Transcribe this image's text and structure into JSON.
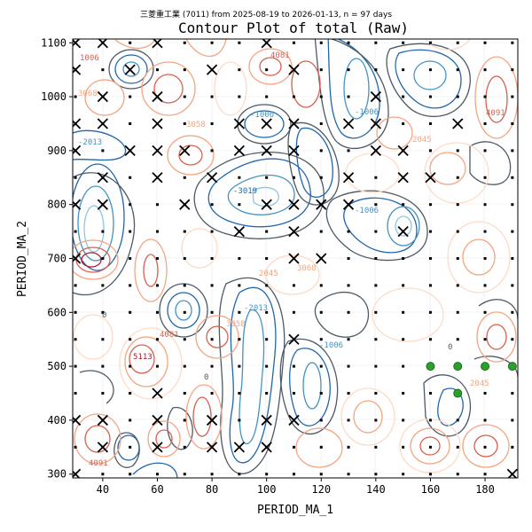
{
  "chart_data": {
    "type": "contour",
    "suptitle": "三菱重工業 (7011) from 2025-08-19 to 2026-01-13, n = 97 days",
    "title": "Contour Plot of total (Raw)",
    "xlabel": "PERIOD_MA_1",
    "ylabel": "PERIOD_MA_2",
    "xlim": [
      29,
      192
    ],
    "ylim": [
      293,
      1107
    ],
    "xticks": [
      40,
      60,
      80,
      100,
      120,
      140,
      160,
      180
    ],
    "yticks": [
      300,
      400,
      500,
      600,
      700,
      800,
      900,
      1000,
      1100
    ],
    "contour_labels": [
      "-3019",
      "-2013",
      "-1006",
      "0",
      "1006",
      "2045",
      "3058",
      "3068",
      "4081",
      "4091",
      "5113"
    ],
    "colors": {
      "negative": "#2166ac",
      "zero": "#4d5a66",
      "positive": "#d6604d",
      "best": "#2ca02c",
      "grid_point": "#000000"
    },
    "grid_points": {
      "x": [
        30,
        40,
        50,
        60,
        70,
        80,
        90,
        100,
        110,
        120,
        130,
        140,
        150,
        160,
        170,
        180,
        190
      ],
      "y": [
        300,
        350,
        400,
        450,
        500,
        550,
        600,
        650,
        700,
        750,
        800,
        850,
        900,
        950,
        1000,
        1050,
        1100
      ]
    },
    "excluded_points": [
      [
        30,
        1100
      ],
      [
        40,
        1100
      ],
      [
        60,
        1100
      ],
      [
        100,
        1100
      ],
      [
        30,
        1050
      ],
      [
        50,
        1050
      ],
      [
        80,
        1050
      ],
      [
        110,
        1050
      ],
      [
        40,
        1000
      ],
      [
        60,
        1000
      ],
      [
        140,
        1000
      ],
      [
        30,
        950
      ],
      [
        40,
        950
      ],
      [
        60,
        950
      ],
      [
        90,
        950
      ],
      [
        100,
        950
      ],
      [
        110,
        950
      ],
      [
        130,
        950
      ],
      [
        140,
        950
      ],
      [
        170,
        950
      ],
      [
        30,
        900
      ],
      [
        50,
        900
      ],
      [
        60,
        900
      ],
      [
        70,
        900
      ],
      [
        90,
        900
      ],
      [
        100,
        900
      ],
      [
        110,
        900
      ],
      [
        140,
        900
      ],
      [
        150,
        900
      ],
      [
        40,
        850
      ],
      [
        60,
        850
      ],
      [
        80,
        850
      ],
      [
        130,
        850
      ],
      [
        150,
        850
      ],
      [
        160,
        850
      ],
      [
        30,
        800
      ],
      [
        40,
        800
      ],
      [
        70,
        800
      ],
      [
        100,
        800
      ],
      [
        110,
        800
      ],
      [
        120,
        800
      ],
      [
        130,
        800
      ],
      [
        90,
        750
      ],
      [
        110,
        750
      ],
      [
        150,
        750
      ],
      [
        30,
        700
      ],
      [
        110,
        700
      ],
      [
        120,
        700
      ],
      [
        110,
        550
      ],
      [
        30,
        400
      ],
      [
        40,
        400
      ],
      [
        60,
        400
      ],
      [
        80,
        400
      ],
      [
        100,
        400
      ],
      [
        110,
        400
      ],
      [
        60,
        450
      ],
      [
        40,
        350
      ],
      [
        60,
        350
      ],
      [
        80,
        350
      ],
      [
        90,
        350
      ],
      [
        100,
        350
      ],
      [
        30,
        300
      ],
      [
        190,
        300
      ]
    ],
    "best_points": [
      [
        160,
        500
      ],
      [
        170,
        500
      ],
      [
        180,
        500
      ],
      [
        190,
        500
      ],
      [
        170,
        450
      ]
    ]
  }
}
